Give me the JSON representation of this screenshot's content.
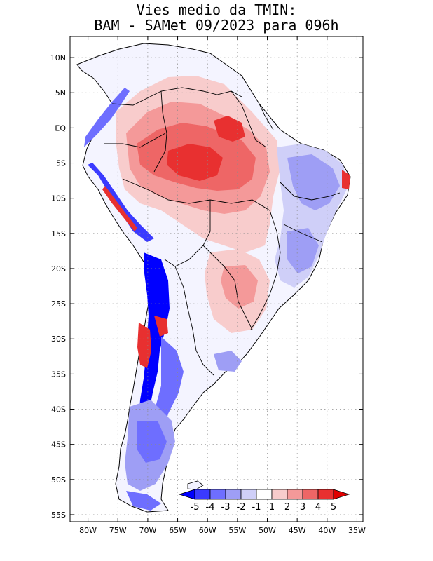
{
  "title": {
    "line1": "Vies medio da TMIN:",
    "line2": "BAM - SAMet 09/2023  para 096h"
  },
  "map": {
    "region": "South America",
    "lon_range": [
      -83,
      -34
    ],
    "lat_range": [
      -56,
      13
    ],
    "lat_ticks": [
      "10N",
      "5N",
      "EQ",
      "5S",
      "10S",
      "15S",
      "20S",
      "25S",
      "30S",
      "35S",
      "40S",
      "45S",
      "50S",
      "55S"
    ],
    "lon_ticks": [
      "80W",
      "75W",
      "70W",
      "65W",
      "60W",
      "55W",
      "50W",
      "45W",
      "40W",
      "35W"
    ]
  },
  "legend": {
    "labels": [
      "-5",
      "-4",
      "-3",
      "-2",
      "-1",
      "1",
      "2",
      "3",
      "4",
      "5"
    ],
    "colors": [
      "#0000ff",
      "#3a3aff",
      "#6e6eff",
      "#9e9ef5",
      "#cfcff8",
      "#ffffff",
      "#f8cccc",
      "#f49999",
      "#ee6666",
      "#e83030",
      "#e00000"
    ]
  }
}
